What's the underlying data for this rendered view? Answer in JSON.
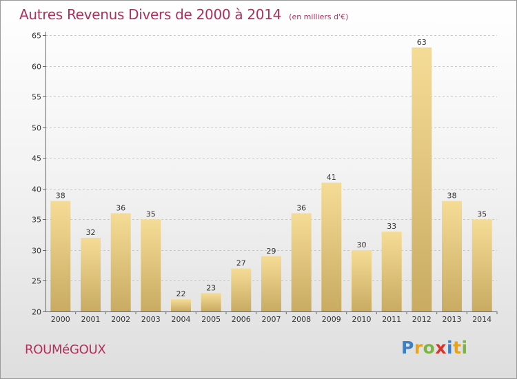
{
  "header": {
    "title": "Autres Revenus Divers de 2000 à 2014",
    "subtitle": "(en milliers d'€)"
  },
  "footer": {
    "commune": "ROUMéGOUX",
    "brand_letters": [
      "P",
      "r",
      "o",
      "x",
      "i",
      "t",
      "i"
    ],
    "brand_colors": [
      "#3c7fc4",
      "#e8a317",
      "#7cb342",
      "#d8342c",
      "#3c7fc4",
      "#e8a317",
      "#7cb342"
    ]
  },
  "colors": {
    "bar_light": "#f5dc96",
    "bar_dark": "#c9ab62",
    "grid": "#c8c8c8",
    "axis": "#666666"
  },
  "chart_data": {
    "type": "bar",
    "title": "Autres Revenus Divers de 2000 à 2014",
    "subtitle": "(en milliers d'€)",
    "xlabel": "",
    "ylabel": "",
    "categories": [
      "2000",
      "2001",
      "2002",
      "2003",
      "2004",
      "2005",
      "2006",
      "2007",
      "2008",
      "2009",
      "2010",
      "2011",
      "2012",
      "2013",
      "2014"
    ],
    "values": [
      38,
      32,
      36,
      35,
      22,
      23,
      27,
      29,
      36,
      41,
      30,
      33,
      63,
      38,
      35
    ],
    "ylim": [
      20,
      65
    ],
    "yticks": [
      20,
      25,
      30,
      35,
      40,
      45,
      50,
      55,
      60,
      65
    ],
    "grid": true,
    "show_value_labels": true
  }
}
